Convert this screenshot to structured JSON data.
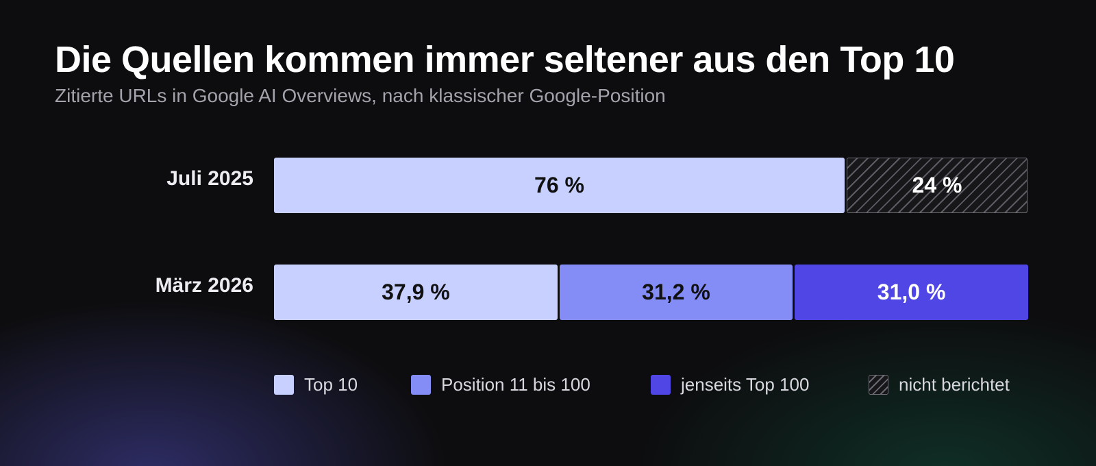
{
  "chart_data": {
    "type": "bar",
    "orientation": "horizontal",
    "stacked": true,
    "title": "Die Quellen kommen immer seltener aus den Top 10",
    "subtitle": "Zitierte URLs in Google AI Overviews, nach klassischer Google-Position",
    "xlim": [
      0,
      100
    ],
    "grid": false,
    "legend_placement": "bottom",
    "categories": [
      {
        "label": "Juli 2025",
        "segments": [
          {
            "series": "Top 10",
            "value": 76,
            "label": "76 %"
          },
          {
            "series": "nicht berichtet",
            "value": 24,
            "label": "24 %"
          }
        ]
      },
      {
        "label": "März 2026",
        "segments": [
          {
            "series": "Top 10",
            "value": 37.9,
            "label": "37,9 %"
          },
          {
            "series": "Position 11 bis 100",
            "value": 31.2,
            "label": "31,2 %"
          },
          {
            "series": "jenseits Top 100",
            "value": 31.0,
            "label": "31,0 %"
          }
        ]
      }
    ],
    "series": [
      {
        "name": "Top 10",
        "color": "#c8d0ff",
        "text_color": "#111111",
        "pattern": "solid"
      },
      {
        "name": "Position 11 bis 100",
        "color": "#848cf6",
        "text_color": "#111111",
        "pattern": "solid"
      },
      {
        "name": "jenseits Top 100",
        "color": "#4f46e5",
        "text_color": "#ffffff",
        "pattern": "solid"
      },
      {
        "name": "nicht berichtet",
        "color": "#17171a",
        "text_color": "#ffffff",
        "pattern": "hatched"
      }
    ]
  }
}
